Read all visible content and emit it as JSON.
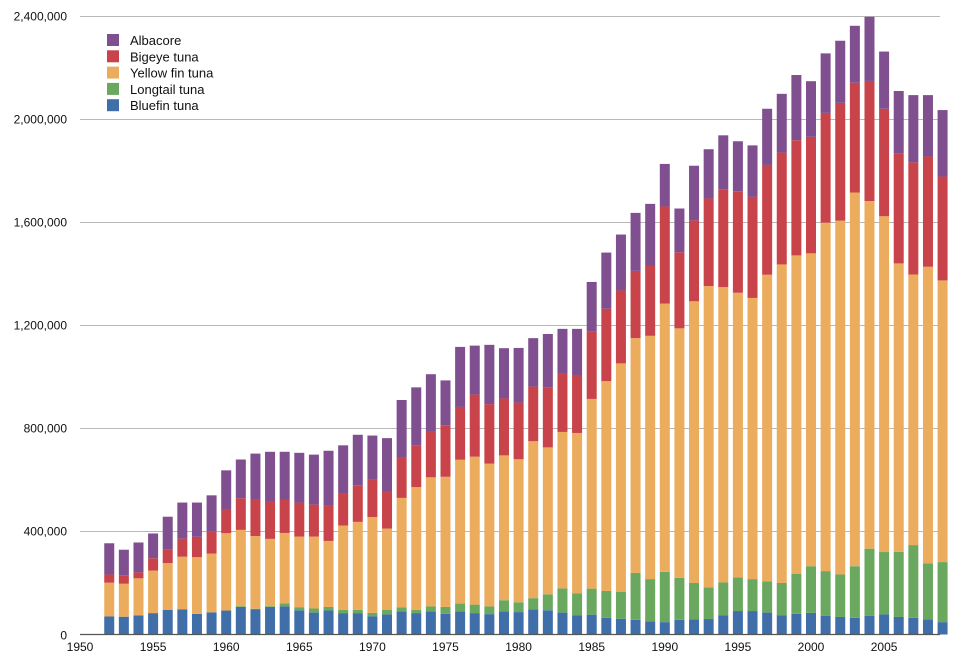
{
  "chart_data": {
    "type": "bar",
    "stacked": true,
    "title": "",
    "xlabel": "",
    "ylabel": "",
    "ylim": [
      0,
      2400000
    ],
    "y_ticks": [
      0,
      400000,
      800000,
      1200000,
      1600000,
      2000000,
      2400000
    ],
    "y_tick_labels": [
      "0",
      "400,000",
      "800,000",
      "1,200,000",
      "1,600,000",
      "2,000,000",
      "2,400,000"
    ],
    "x_range": [
      1950,
      2009
    ],
    "x_ticks": [
      1950,
      1955,
      1960,
      1965,
      1970,
      1975,
      1980,
      1985,
      1990,
      1995,
      2000,
      2005
    ],
    "x_tick_labels": [
      "1950",
      "1955",
      "1960",
      "1965",
      "1970",
      "1975",
      "1980",
      "1985",
      "1990",
      "1995",
      "2000",
      "2005"
    ],
    "grid": true,
    "legend_position": "top-left",
    "categories": [
      1952,
      1953,
      1954,
      1955,
      1956,
      1957,
      1958,
      1959,
      1960,
      1961,
      1962,
      1963,
      1964,
      1965,
      1966,
      1967,
      1968,
      1969,
      1970,
      1971,
      1972,
      1973,
      1974,
      1975,
      1976,
      1977,
      1978,
      1979,
      1980,
      1981,
      1982,
      1983,
      1984,
      1985,
      1986,
      1987,
      1988,
      1989,
      1990,
      1991,
      1992,
      1993,
      1994,
      1995,
      1996,
      1997,
      1998,
      1999,
      2000,
      2001,
      2002,
      2003,
      2004,
      2005,
      2006,
      2007,
      2008,
      2009
    ],
    "series": [
      {
        "name": "Bluefin tuna",
        "color": "#3f6ea8",
        "values": [
          70000,
          69000,
          74000,
          83000,
          96000,
          98000,
          80000,
          86000,
          93000,
          107000,
          97000,
          107000,
          109000,
          94000,
          85000,
          93000,
          83000,
          83000,
          71000,
          78000,
          89000,
          83000,
          89000,
          80000,
          89000,
          83000,
          79000,
          89000,
          87000,
          98000,
          94000,
          85000,
          75000,
          77000,
          65000,
          61000,
          57000,
          51000,
          48000,
          57000,
          58000,
          60000,
          75000,
          91000,
          91000,
          85000,
          75000,
          80000,
          84000,
          72000,
          68000,
          65000,
          72000,
          78000,
          68000,
          65000,
          59000,
          48000
        ]
      },
      {
        "name": "Longtail tuna",
        "color": "#6aa860",
        "values": [
          0,
          0,
          0,
          0,
          0,
          0,
          0,
          0,
          0,
          3000,
          3000,
          3000,
          12000,
          12000,
          16000,
          14000,
          13000,
          13000,
          13000,
          17000,
          16000,
          13000,
          20000,
          27000,
          31000,
          33000,
          30000,
          44000,
          38000,
          43000,
          62000,
          94000,
          84000,
          101000,
          104000,
          104000,
          182000,
          164000,
          195000,
          163000,
          142000,
          123000,
          127000,
          130000,
          124000,
          121000,
          125000,
          156000,
          181000,
          174000,
          165000,
          200000,
          261000,
          242000,
          253000,
          282000,
          217000,
          233000
        ]
      },
      {
        "name": "Yellow fin tuna",
        "color": "#ebad5d",
        "values": [
          131000,
          128000,
          144000,
          165000,
          181000,
          204000,
          220000,
          228000,
          300000,
          296000,
          282000,
          261000,
          273000,
          274000,
          279000,
          256000,
          327000,
          341000,
          372000,
          316000,
          425000,
          476000,
          501000,
          505000,
          558000,
          574000,
          554000,
          562000,
          555000,
          609000,
          570000,
          607000,
          623000,
          736000,
          814000,
          887000,
          911000,
          944000,
          1041000,
          968000,
          1093000,
          1169000,
          1146000,
          1105000,
          1091000,
          1190000,
          1236000,
          1235000,
          1214000,
          1352000,
          1373000,
          1450000,
          1349000,
          1303000,
          1119000,
          1050000,
          1151000,
          1093000
        ]
      },
      {
        "name": "Bigeye tuna",
        "color": "#c9444a",
        "values": [
          32000,
          33000,
          23000,
          48000,
          52000,
          70000,
          79000,
          87000,
          94000,
          123000,
          142000,
          147000,
          128000,
          132000,
          124000,
          136000,
          126000,
          142000,
          145000,
          144000,
          157000,
          162000,
          176000,
          200000,
          205000,
          241000,
          231000,
          221000,
          220000,
          212000,
          234000,
          227000,
          225000,
          261000,
          281000,
          283000,
          261000,
          271000,
          377000,
          295000,
          314000,
          340000,
          380000,
          394000,
          392000,
          426000,
          434000,
          447000,
          452000,
          426000,
          457000,
          426000,
          466000,
          417000,
          427000,
          435000,
          428000,
          403000
        ]
      },
      {
        "name": "Albacore",
        "color": "#7f4f8f",
        "values": [
          121000,
          99000,
          116000,
          96000,
          128000,
          140000,
          133000,
          139000,
          150000,
          150000,
          178000,
          191000,
          187000,
          193000,
          194000,
          214000,
          185000,
          196000,
          171000,
          207000,
          223000,
          225000,
          224000,
          174000,
          233000,
          190000,
          230000,
          195000,
          212000,
          188000,
          206000,
          173000,
          179000,
          193000,
          218000,
          217000,
          225000,
          241000,
          165000,
          170000,
          212000,
          191000,
          209000,
          194000,
          200000,
          218000,
          228000,
          253000,
          216000,
          231000,
          241000,
          221000,
          249000,
          222000,
          242000,
          261000,
          238000,
          258000
        ]
      }
    ],
    "legend_order": [
      "Albacore",
      "Bigeye tuna",
      "Yellow fin tuna",
      "Longtail tuna",
      "Bluefin tuna"
    ]
  }
}
